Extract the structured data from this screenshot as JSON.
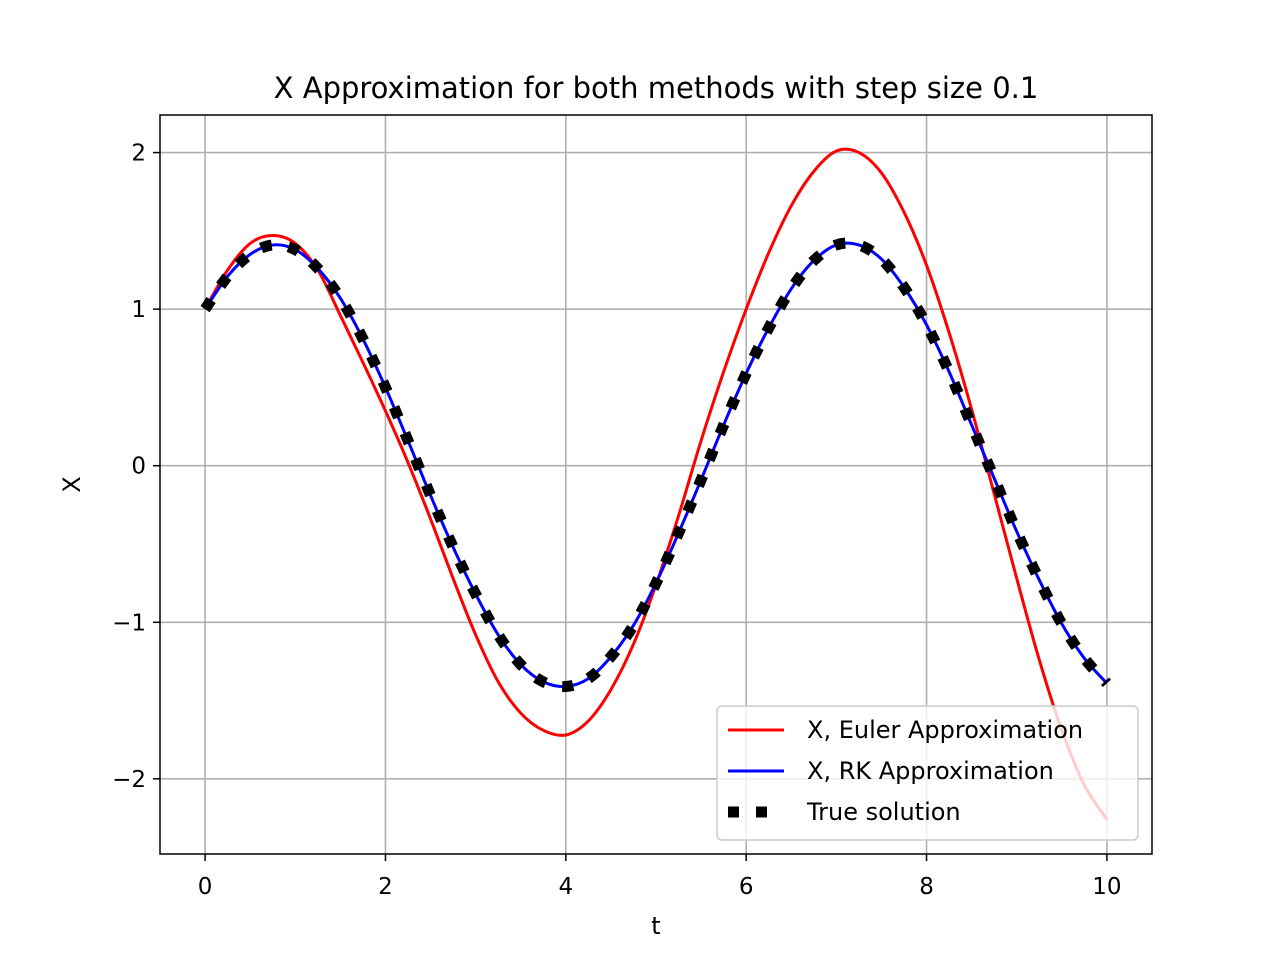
{
  "chart_data": {
    "type": "line",
    "title": "X Approximation for both methods with step size 0.1",
    "xlabel": "t",
    "ylabel": "X",
    "xlim": [
      -0.5,
      10.5
    ],
    "ylim": [
      -2.48,
      2.24
    ],
    "x_ticks": [
      0,
      2,
      4,
      6,
      8,
      10
    ],
    "x_tick_labels": [
      "0",
      "2",
      "4",
      "6",
      "8",
      "10"
    ],
    "y_ticks": [
      -2,
      -1,
      0,
      1,
      2
    ],
    "y_tick_labels": [
      "−2",
      "−1",
      "0",
      "1",
      "2"
    ],
    "grid": true,
    "legend_position": "lower right",
    "series": [
      {
        "name": "X, Euler Approximation",
        "style": "line",
        "color": "#ff0000",
        "x": [
          0,
          0.25,
          0.5,
          0.75,
          1.0,
          1.25,
          1.5,
          1.75,
          2.0,
          2.25,
          2.5,
          2.75,
          3.0,
          3.25,
          3.5,
          3.75,
          4.0,
          4.25,
          4.5,
          4.75,
          5.0,
          5.25,
          5.5,
          5.75,
          6.0,
          6.25,
          6.5,
          6.75,
          7.0,
          7.25,
          7.5,
          7.75,
          8.0,
          8.25,
          8.5,
          8.75,
          9.0,
          9.25,
          9.5,
          9.75,
          10.0
        ],
        "y": [
          1.0,
          1.25,
          1.42,
          1.47,
          1.42,
          1.25,
          0.96,
          0.66,
          0.35,
          0.02,
          -0.34,
          -0.72,
          -1.08,
          -1.38,
          -1.58,
          -1.69,
          -1.72,
          -1.63,
          -1.43,
          -1.14,
          -0.76,
          -0.32,
          0.16,
          0.6,
          1.0,
          1.36,
          1.66,
          1.88,
          2.01,
          2.0,
          1.87,
          1.62,
          1.28,
          0.85,
          0.36,
          -0.18,
          -0.72,
          -1.24,
          -1.69,
          -2.04,
          -2.26
        ]
      },
      {
        "name": "X, RK Approximation",
        "style": "line",
        "color": "#0000ff",
        "x": [
          0,
          0.25,
          0.5,
          0.75,
          1.0,
          1.25,
          1.5,
          1.75,
          2.0,
          2.25,
          2.5,
          2.75,
          3.0,
          3.25,
          3.5,
          3.75,
          4.0,
          4.25,
          4.5,
          4.75,
          5.0,
          5.25,
          5.5,
          5.75,
          6.0,
          6.25,
          6.5,
          6.75,
          7.0,
          7.25,
          7.5,
          7.75,
          8.0,
          8.25,
          8.5,
          8.75,
          9.0,
          9.25,
          9.5,
          9.75,
          10.0
        ],
        "y": [
          1.0,
          1.21,
          1.35,
          1.41,
          1.38,
          1.26,
          1.07,
          0.81,
          0.5,
          0.16,
          -0.19,
          -0.52,
          -0.82,
          -1.08,
          -1.27,
          -1.38,
          -1.41,
          -1.36,
          -1.22,
          -1.02,
          -0.75,
          -0.43,
          -0.09,
          0.26,
          0.59,
          0.88,
          1.13,
          1.31,
          1.41,
          1.41,
          1.32,
          1.14,
          0.9,
          0.6,
          0.26,
          -0.08,
          -0.42,
          -0.73,
          -1.01,
          -1.23,
          -1.39
        ]
      },
      {
        "name": "True solution",
        "style": "dotted-square",
        "color": "#000000",
        "x": [
          0,
          0.25,
          0.5,
          0.75,
          1.0,
          1.25,
          1.5,
          1.75,
          2.0,
          2.25,
          2.5,
          2.75,
          3.0,
          3.25,
          3.5,
          3.75,
          4.0,
          4.25,
          4.5,
          4.75,
          5.0,
          5.25,
          5.5,
          5.75,
          6.0,
          6.25,
          6.5,
          6.75,
          7.0,
          7.25,
          7.5,
          7.75,
          8.0,
          8.25,
          8.5,
          8.75,
          9.0,
          9.25,
          9.5,
          9.75,
          10.0
        ],
        "y": [
          1.0,
          1.21,
          1.35,
          1.41,
          1.38,
          1.26,
          1.07,
          0.81,
          0.5,
          0.16,
          -0.19,
          -0.52,
          -0.82,
          -1.08,
          -1.27,
          -1.38,
          -1.41,
          -1.36,
          -1.22,
          -1.02,
          -0.75,
          -0.43,
          -0.09,
          0.26,
          0.59,
          0.88,
          1.13,
          1.31,
          1.41,
          1.41,
          1.32,
          1.14,
          0.9,
          0.6,
          0.26,
          -0.08,
          -0.42,
          -0.73,
          -1.01,
          -1.23,
          -1.39
        ]
      }
    ]
  }
}
